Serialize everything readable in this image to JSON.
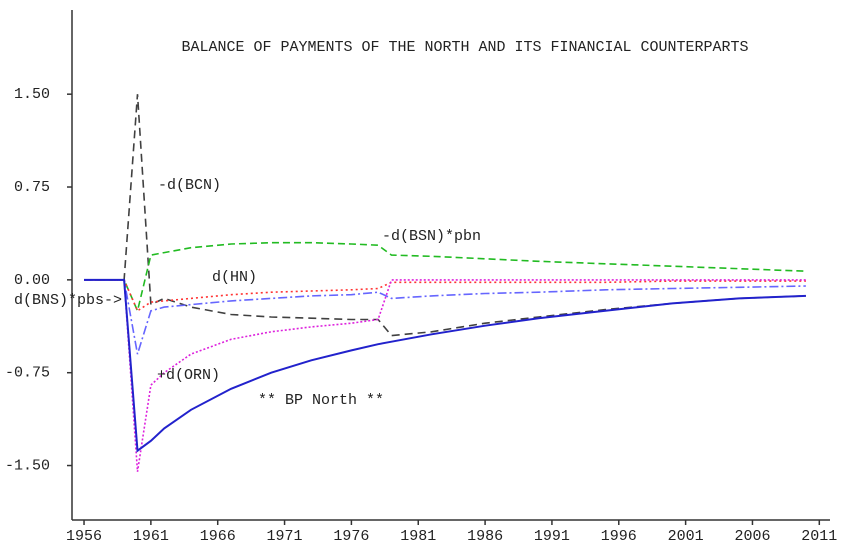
{
  "chart_data": {
    "type": "line",
    "title": "BALANCE OF PAYMENTS OF THE NORTH AND ITS FINANCIAL COUNTERPARTS",
    "x": [
      1956,
      1959,
      1960,
      1961,
      1962,
      1964,
      1967,
      1970,
      1973,
      1976,
      1978,
      1979,
      1982,
      1986,
      1990,
      1995,
      2000,
      2005,
      2010
    ],
    "xlim": [
      1955.1,
      2011.8
    ],
    "xticks": [
      1956,
      1961,
      1966,
      1971,
      1976,
      1981,
      1986,
      1991,
      1996,
      2001,
      2006,
      2011
    ],
    "ylim": [
      -1.94,
      2.18
    ],
    "yticks": [
      {
        "value": -1.5,
        "label": "-1.50"
      },
      {
        "value": -0.75,
        "label": "-0.75"
      },
      {
        "value": 0,
        "label": "0.00"
      },
      {
        "value": 0.75,
        "label": "0.75"
      },
      {
        "value": 1.5,
        "label": "1.50"
      }
    ],
    "series": [
      {
        "name": "-d(BCN)",
        "color": "#404040",
        "dash": "8,5",
        "values": [
          0,
          0,
          1.5,
          -0.2,
          -0.15,
          -0.22,
          -0.28,
          -0.3,
          -0.31,
          -0.32,
          -0.32,
          -0.45,
          -0.42,
          -0.35,
          -0.3,
          -0.24,
          -0.19,
          -0.15,
          -0.13
        ]
      },
      {
        "name": "-d(BSN)*pbn",
        "color": "#22bb22",
        "dash": "7,4",
        "values": [
          0,
          0,
          -0.25,
          0.2,
          0.22,
          0.26,
          0.29,
          0.3,
          0.3,
          0.29,
          0.28,
          0.2,
          0.19,
          0.17,
          0.15,
          0.13,
          0.11,
          0.09,
          0.07
        ]
      },
      {
        "name": "d(HN)",
        "color": "#ff3333",
        "dash": "2,3",
        "values": [
          0,
          0,
          -0.25,
          -0.18,
          -0.17,
          -0.15,
          -0.12,
          -0.1,
          -0.09,
          -0.08,
          -0.07,
          -0.02,
          -0.02,
          -0.02,
          -0.02,
          -0.02,
          -0.01,
          -0.01,
          -0.01
        ]
      },
      {
        "name": "d(BNS)*pbs->",
        "color": "#6666ff",
        "dash": "9,3,2,3",
        "values": [
          0,
          0,
          -0.6,
          -0.25,
          -0.22,
          -0.2,
          -0.17,
          -0.15,
          -0.13,
          -0.12,
          -0.1,
          -0.15,
          -0.13,
          -0.11,
          -0.1,
          -0.08,
          -0.07,
          -0.06,
          -0.05
        ]
      },
      {
        "name": "+d(ORN)",
        "color": "#dd22dd",
        "dash": "2,2",
        "values": [
          0,
          0,
          -1.55,
          -0.85,
          -0.75,
          -0.6,
          -0.48,
          -0.42,
          -0.38,
          -0.35,
          -0.32,
          0,
          0,
          0,
          0,
          0,
          0,
          0,
          0
        ]
      },
      {
        "name": "** BP North **",
        "color": "#2222cc",
        "dash": "",
        "values": [
          0,
          0,
          -1.38,
          -1.3,
          -1.2,
          -1.05,
          -0.88,
          -0.75,
          -0.65,
          -0.57,
          -0.52,
          -0.5,
          -0.44,
          -0.37,
          -0.31,
          -0.25,
          -0.19,
          -0.15,
          -0.13
        ]
      }
    ]
  }
}
